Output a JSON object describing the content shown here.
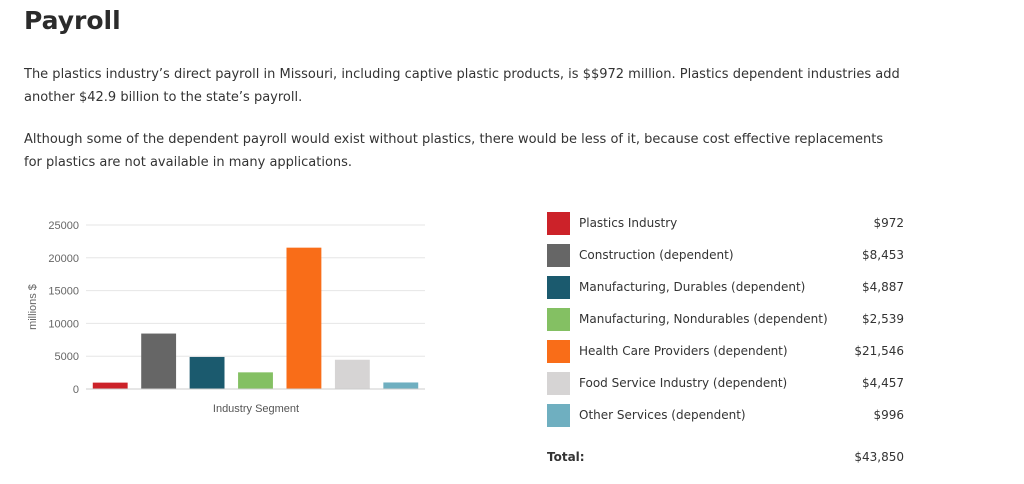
{
  "page": {
    "title": "Payroll",
    "paragraph1": "The plastics industry’s direct payroll in Missouri, including captive plastic products, is $$972 million. Plastics dependent industries add another $42.9 billion to the state’s payroll.",
    "paragraph2": "Although some of the dependent payroll would exist without plastics, there would be less of it, because cost effective replacements for plastics are not available in many applications."
  },
  "chart_data": {
    "type": "bar",
    "title": "",
    "xlabel": "Industry Segment",
    "ylabel": "millions $",
    "ylim": [
      0,
      25000
    ],
    "yticks": [
      0,
      5000,
      10000,
      15000,
      20000,
      25000
    ],
    "grid": true,
    "legend_placement": "right",
    "categories": [
      "Plastics Industry",
      "Construction (dependent)",
      "Manufacturing, Durables (dependent)",
      "Manufacturing, Nondurables (dependent)",
      "Health Care Providers (dependent)",
      "Food Service Industry (dependent)",
      "Other Services (dependent)"
    ],
    "values": [
      972,
      8453,
      4887,
      2539,
      21546,
      4457,
      996
    ],
    "colors": [
      "#cc2229",
      "#666666",
      "#1b5a6e",
      "#84c063",
      "#f96d18",
      "#d6d4d4",
      "#6fafc0"
    ]
  },
  "legend": {
    "items": [
      {
        "label": "Plastics Industry",
        "value": "$972",
        "color": "#cc2229"
      },
      {
        "label": "Construction (dependent)",
        "value": "$8,453",
        "color": "#666666"
      },
      {
        "label": "Manufacturing, Durables (dependent)",
        "value": "$4,887",
        "color": "#1b5a6e"
      },
      {
        "label": "Manufacturing, Nondurables (dependent)",
        "value": "$2,539",
        "color": "#84c063"
      },
      {
        "label": "Health Care Providers (dependent)",
        "value": "$21,546",
        "color": "#f96d18"
      },
      {
        "label": "Food Service Industry (dependent)",
        "value": "$4,457",
        "color": "#d6d4d4"
      },
      {
        "label": "Other Services (dependent)",
        "value": "$996",
        "color": "#6fafc0"
      }
    ],
    "total_label": "Total:",
    "total_value": "$43,850"
  }
}
